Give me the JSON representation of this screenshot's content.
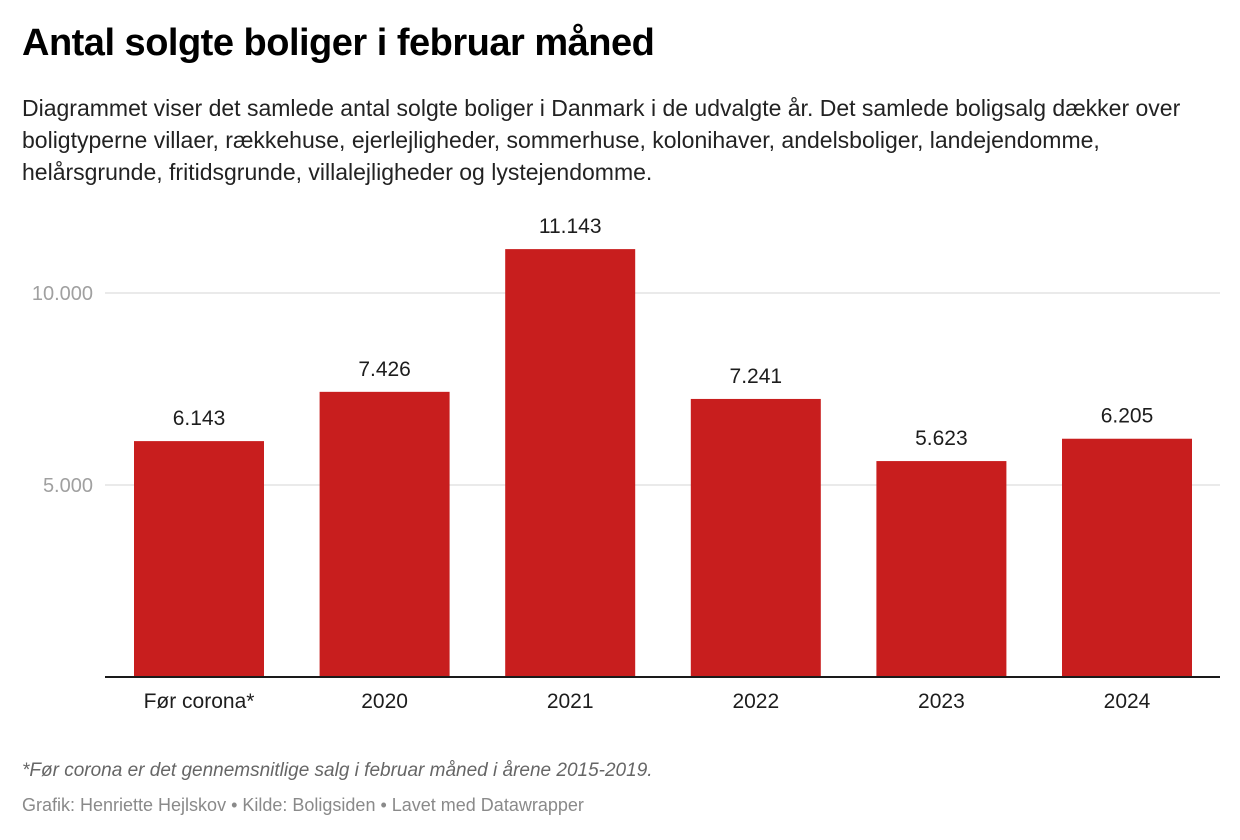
{
  "header": {
    "title": "Antal solgte boliger i februar måned",
    "description": "Diagrammet viser det samlede antal solgte boliger i Danmark i de udvalgte år. Det samlede boligsalg dækker over boligtyperne villaer, rækkehuse, ejerlejligheder, sommerhuse, kolonihaver, andelsboliger, landejendomme, helårsgrunde, fritidsgrunde, villalejligheder og lystejendomme."
  },
  "chart_data": {
    "type": "bar",
    "title": "Antal solgte boliger i februar måned",
    "xlabel": "",
    "ylabel": "",
    "categories": [
      "Før corona*",
      "2020",
      "2021",
      "2022",
      "2023",
      "2024"
    ],
    "values": [
      6143,
      7426,
      11143,
      7241,
      5623,
      6205
    ],
    "value_labels": [
      "6.143",
      "7.426",
      "11.143",
      "7.241",
      "5.623",
      "6.205"
    ],
    "ylim": [
      0,
      11143
    ],
    "yticks": [
      5000,
      10000
    ],
    "ytick_labels": [
      "5.000",
      "10.000"
    ],
    "grid": true,
    "legend": "none",
    "bar_color": "#c81e1e"
  },
  "footer": {
    "note": "*Før corona er det gennemsnitlige salg i februar måned i årene 2015-2019.",
    "byline": "Grafik: Henriette Hejlskov • Kilde: Boligsiden • Lavet med Datawrapper"
  }
}
